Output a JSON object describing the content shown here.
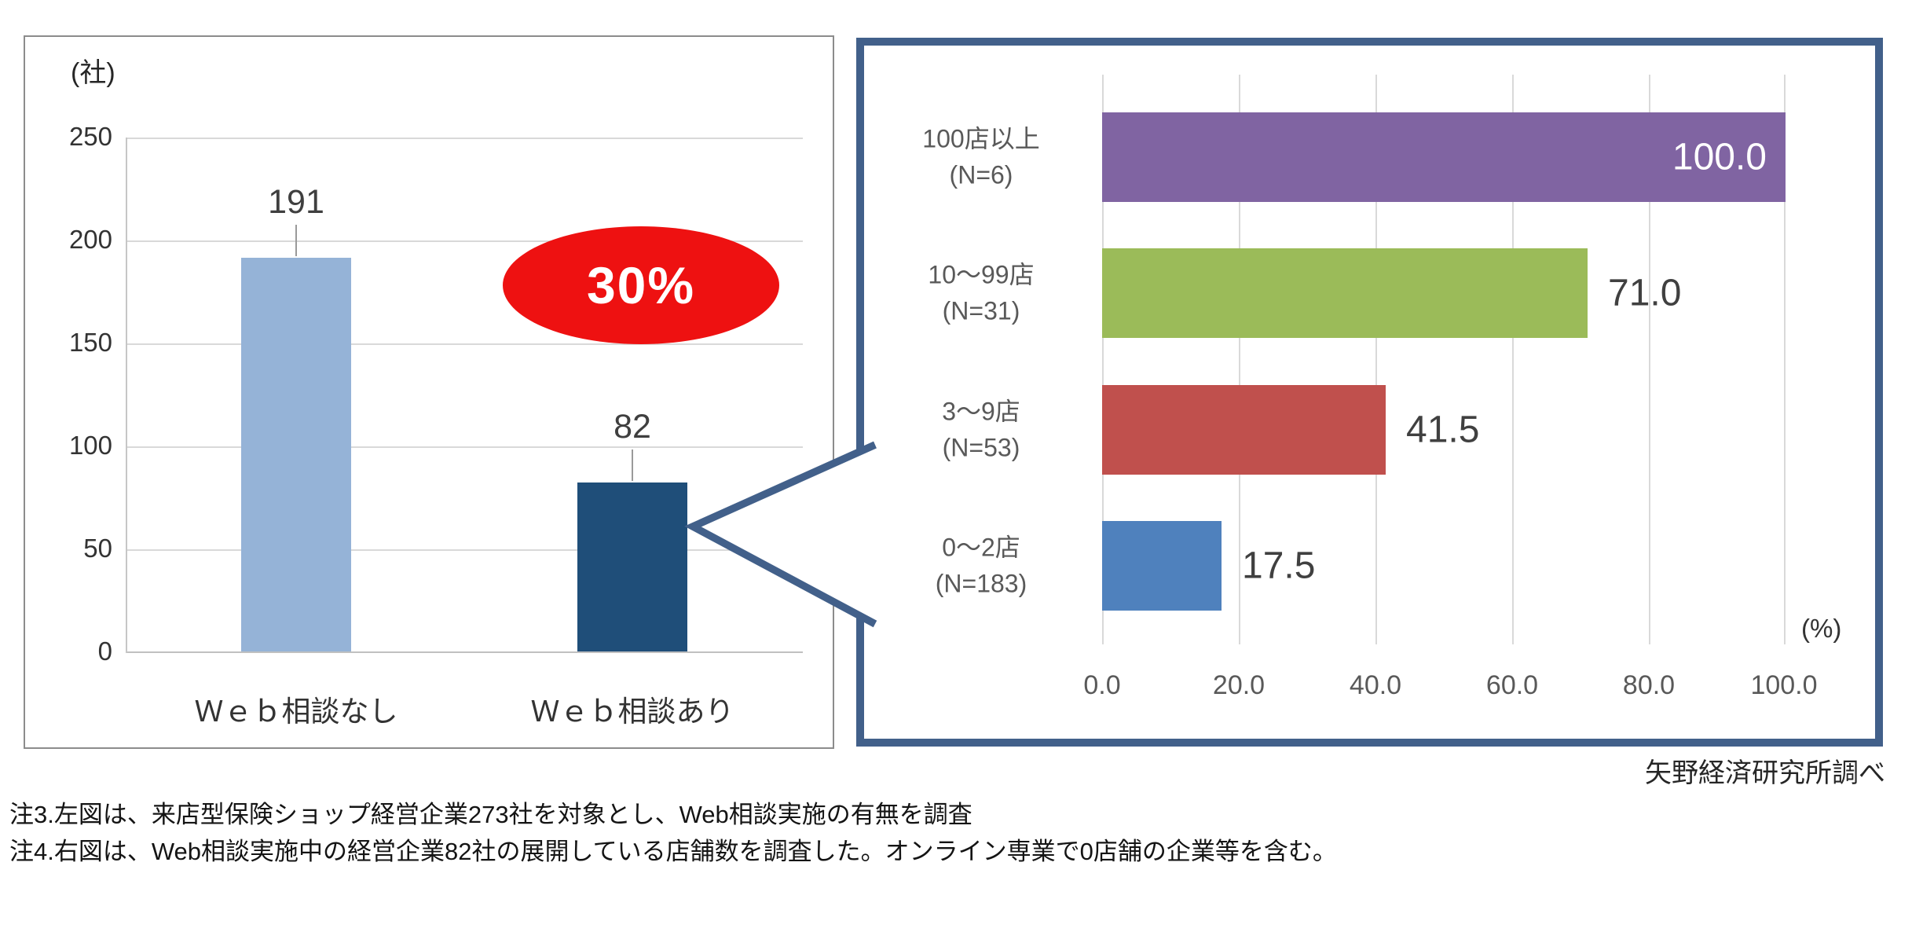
{
  "chart_data": [
    {
      "type": "bar",
      "orientation": "vertical",
      "title": "",
      "categories": [
        "Ｗｅｂ相談なし",
        "Ｗｅｂ相談あり"
      ],
      "values": [
        191,
        82
      ],
      "bar_colors": [
        "#95B3D7",
        "#1F4E79"
      ],
      "ylabel": "(社)",
      "ylim": [
        0,
        250
      ],
      "yticks": [
        0,
        50,
        100,
        150,
        200,
        250
      ],
      "grid": "horizontal",
      "annotation": {
        "text": "30%",
        "fill": "#ee1111",
        "text_color": "#ffffff"
      }
    },
    {
      "type": "bar",
      "orientation": "horizontal",
      "title": "",
      "categories": [
        "100店以上 (N=6)",
        "10～99店 (N=31)",
        "3～9店 (N=53)",
        "0～2店 (N=183)"
      ],
      "values": [
        100.0,
        71.0,
        41.5,
        17.5
      ],
      "bar_colors": [
        "#8064A2",
        "#9BBB59",
        "#C0504D",
        "#4F81BD"
      ],
      "value_labels_inside": [
        true,
        false,
        false,
        false
      ],
      "xlabel": "(%)",
      "xlim": [
        0,
        100
      ],
      "xticks": [
        0,
        20,
        40,
        60,
        80,
        100
      ],
      "grid": "vertical"
    }
  ],
  "left_chart": {
    "unit_label": "(社)",
    "y_tick_labels": [
      "0",
      "50",
      "100",
      "150",
      "200",
      "250"
    ],
    "value_labels": [
      "191",
      "82"
    ],
    "category_labels": [
      "Ｗｅｂ相談なし",
      "Ｗｅｂ相談あり"
    ],
    "callout_label": "30%"
  },
  "right_chart": {
    "rows": [
      {
        "label1": "100店以上",
        "label2": "(N=6)",
        "value_label": "100.0"
      },
      {
        "label1": "10～99店",
        "label2": "(N=31)",
        "value_label": "71.0"
      },
      {
        "label1": "3～9店",
        "label2": "(N=53)",
        "value_label": "41.5"
      },
      {
        "label1": "0～2店",
        "label2": "(N=183)",
        "value_label": "17.5"
      }
    ],
    "x_tick_labels": [
      "0.0",
      "20.0",
      "40.0",
      "60.0",
      "80.0",
      "100.0"
    ],
    "unit_label": "(%)"
  },
  "source_label": "矢野経済研究所調べ",
  "notes": [
    "注3.左図は、来店型保険ショップ経営企業273社を対象とし、Web相談実施の有無を調査",
    "注4.右図は、Web相談実施中の経営企業82社の展開している店舗数を調査した。オンライン専業で0店舗の企業等を含む。"
  ],
  "colors": {
    "panel_border": "#42608a",
    "left_panel_border": "#8c8c8c",
    "gridline": "#d9d9d9",
    "callout_red": "#ee1111"
  }
}
